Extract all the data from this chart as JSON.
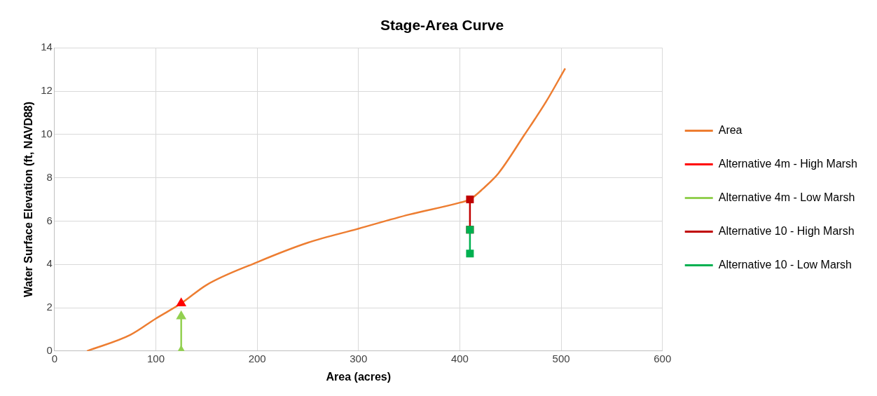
{
  "chart_data": {
    "type": "line",
    "title": "Stage-Area Curve",
    "xlabel": "Area (acres)",
    "ylabel": "Water Surface Elevation (ft, NAVD88)",
    "xlim": [
      0,
      600
    ],
    "xticks": [
      0,
      100,
      200,
      300,
      400,
      500,
      600
    ],
    "ylim": [
      0,
      14
    ],
    "yticks": [
      0,
      2,
      4,
      6,
      8,
      10,
      12,
      14
    ],
    "grid": true,
    "legend": "right",
    "line_style": "solid",
    "series": [
      {
        "name": "Area",
        "color": "#ed7d31",
        "marker": "none",
        "x": [
          32,
          75,
          100,
          125,
          150,
          200,
          250,
          300,
          350,
          400,
          410,
          423,
          438,
          464,
          485,
          504
        ],
        "values": [
          0,
          0.75,
          1.5,
          2.2,
          3.05,
          4.1,
          5.0,
          5.65,
          6.3,
          6.85,
          7.0,
          7.5,
          8.2,
          10.0,
          11.5,
          13.05
        ]
      },
      {
        "name": "Alternative 4m - High Marsh",
        "color": "#ff0000",
        "marker": "triangle",
        "x": [
          125
        ],
        "values": [
          2.2
        ]
      },
      {
        "name": "Alternative 4m - Low Marsh",
        "color": "#92d050",
        "marker": "triangle",
        "x": [
          125,
          125
        ],
        "values": [
          0,
          1.6
        ]
      },
      {
        "name": "Alternative 10 - High Marsh",
        "color": "#c00000",
        "marker": "square",
        "x": [
          410,
          410
        ],
        "values": [
          5.6,
          7.0
        ]
      },
      {
        "name": "Alternative 10 - Low Marsh",
        "color": "#00b050",
        "marker": "square",
        "x": [
          410,
          410
        ],
        "values": [
          4.5,
          5.6
        ]
      }
    ]
  }
}
